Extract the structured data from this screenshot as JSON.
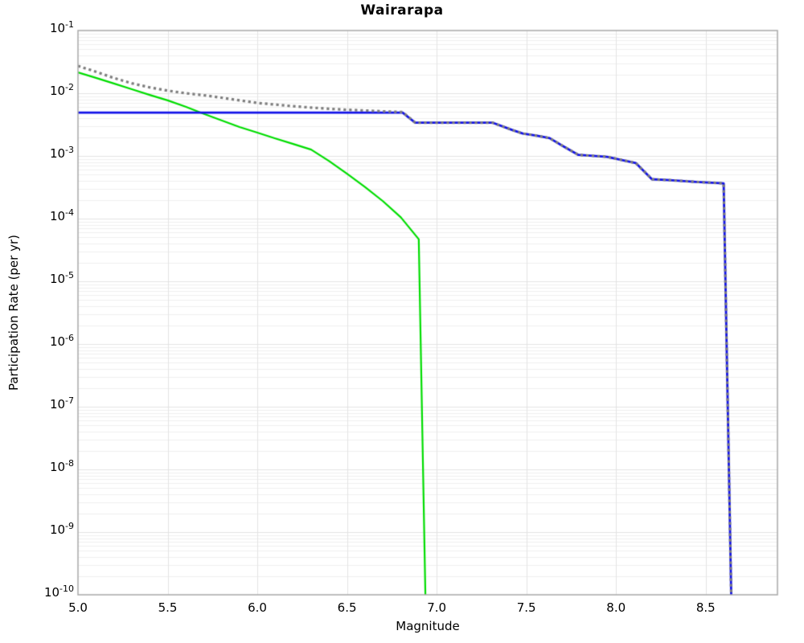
{
  "chart_data": {
    "type": "line",
    "title": "Wairarapa",
    "xlabel": "Magnitude",
    "ylabel": "Participation Rate (per yr)",
    "legend": null,
    "x_axis": {
      "min": 5.0,
      "max": 8.9,
      "tick_values": [
        5.0,
        5.5,
        6.0,
        6.5,
        7.0,
        7.5,
        8.0,
        8.5
      ],
      "tick_labels": [
        "5.0",
        "5.5",
        "6.0",
        "6.5",
        "7.0",
        "7.5",
        "8.0",
        "8.5"
      ]
    },
    "y_axis": {
      "scale": "log",
      "max_exponent": -1,
      "min_exponent": -10,
      "tick_base": "10",
      "tick_exponents": [
        -1,
        -2,
        -3,
        -4,
        -5,
        -6,
        -7,
        -8,
        -9,
        -10
      ]
    },
    "grid": {
      "vertical_step": 0.5,
      "log_minor_lines": true,
      "major_color": "#e3e3e3",
      "minor_color": "#efefef",
      "border_color": "#a9a9a9"
    },
    "series": [
      {
        "name": "green-solid-curve",
        "style": "solid",
        "color": "#00dd00",
        "width": 2.2,
        "points": [
          [
            5.0,
            0.0215
          ],
          [
            5.1,
            0.0176
          ],
          [
            5.2,
            0.0143
          ],
          [
            5.3,
            0.0116
          ],
          [
            5.4,
            0.0094
          ],
          [
            5.5,
            0.0077
          ],
          [
            5.6,
            0.0061
          ],
          [
            5.7,
            0.0047
          ],
          [
            5.8,
            0.0037
          ],
          [
            5.9,
            0.0029
          ],
          [
            6.0,
            0.00235
          ],
          [
            6.1,
            0.0019
          ],
          [
            6.2,
            0.00155
          ],
          [
            6.3,
            0.00126
          ],
          [
            6.4,
            0.00083
          ],
          [
            6.5,
            0.00052
          ],
          [
            6.6,
            0.00032
          ],
          [
            6.7,
            0.00019
          ],
          [
            6.8,
            0.000105
          ],
          [
            6.9,
            4.7e-05
          ],
          [
            6.95,
            1e-12
          ]
        ]
      },
      {
        "name": "blue-solid-curve",
        "style": "solid",
        "color": "#1212e8",
        "width": 2.8,
        "points": [
          [
            5.0,
            0.0049
          ],
          [
            6.81,
            0.0049
          ],
          [
            6.88,
            0.0034
          ],
          [
            7.31,
            0.0034
          ],
          [
            7.42,
            0.0026
          ],
          [
            7.48,
            0.00228
          ],
          [
            7.56,
            0.0021
          ],
          [
            7.63,
            0.00192
          ],
          [
            7.7,
            0.00146
          ],
          [
            7.79,
            0.00104
          ],
          [
            7.95,
            0.00097
          ],
          [
            8.11,
            0.00077
          ],
          [
            8.2,
            0.000425
          ],
          [
            8.3,
            0.00041
          ],
          [
            8.45,
            0.000385
          ],
          [
            8.6,
            0.000365
          ],
          [
            8.655,
            1e-12
          ]
        ]
      },
      {
        "name": "gray-dotted-curve",
        "style": "dotted",
        "color": "#7d7d7d",
        "width": 3.2,
        "points": [
          [
            5.0,
            0.0273
          ],
          [
            5.1,
            0.022
          ],
          [
            5.2,
            0.0175
          ],
          [
            5.3,
            0.0144
          ],
          [
            5.4,
            0.0124
          ],
          [
            5.5,
            0.011
          ],
          [
            5.6,
            0.01
          ],
          [
            5.7,
            0.0093
          ],
          [
            5.8,
            0.0085
          ],
          [
            5.9,
            0.0077
          ],
          [
            6.0,
            0.007
          ],
          [
            6.1,
            0.0066
          ],
          [
            6.2,
            0.0062
          ],
          [
            6.3,
            0.0059
          ],
          [
            6.4,
            0.00565
          ],
          [
            6.5,
            0.00545
          ],
          [
            6.6,
            0.0053
          ],
          [
            6.7,
            0.00515
          ],
          [
            6.81,
            0.005
          ],
          [
            6.88,
            0.0034
          ],
          [
            7.31,
            0.0034
          ],
          [
            7.42,
            0.0026
          ],
          [
            7.48,
            0.00228
          ],
          [
            7.56,
            0.0021
          ],
          [
            7.63,
            0.00192
          ],
          [
            7.7,
            0.00146
          ],
          [
            7.79,
            0.00104
          ],
          [
            7.95,
            0.00097
          ],
          [
            8.11,
            0.00077
          ],
          [
            8.2,
            0.000425
          ],
          [
            8.3,
            0.00041
          ],
          [
            8.45,
            0.000385
          ],
          [
            8.6,
            0.000365
          ],
          [
            8.655,
            1e-12
          ]
        ]
      }
    ]
  }
}
